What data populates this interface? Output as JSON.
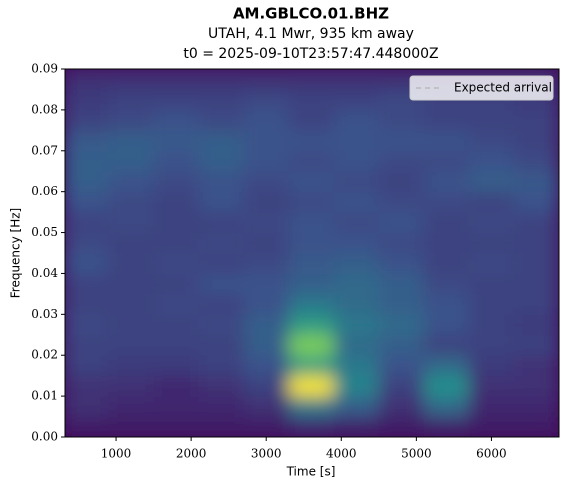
{
  "chart_data": {
    "type": "spectrogram",
    "title": "AM.GBLCO.01.BHZ",
    "subtitle": "UTAH, 4.1 Mwr, 935 km away",
    "subtitle2": "t0 = 2025-09-10T23:57:47.448000Z",
    "xlabel": "Time [s]",
    "ylabel": "Frequency [Hz]",
    "xlim": [
      320,
      6900
    ],
    "ylim": [
      0,
      0.09
    ],
    "xticks": [
      1000,
      2000,
      3000,
      4000,
      5000,
      6000
    ],
    "yticks": [
      {
        "value": 0,
        "label": "0.00"
      },
      {
        "value": 0.01,
        "label": "0.01"
      },
      {
        "value": 0.02,
        "label": "0.02"
      },
      {
        "value": 0.03,
        "label": "0.03"
      },
      {
        "value": 0.04,
        "label": "0.04"
      },
      {
        "value": 0.05,
        "label": "0.05"
      },
      {
        "value": 0.06,
        "label": "0.06"
      },
      {
        "value": 0.07,
        "label": "0.07"
      },
      {
        "value": 0.08,
        "label": "0.08"
      },
      {
        "value": 0.09,
        "label": "0.09"
      }
    ],
    "colormap": "viridis",
    "xbins": [
      300,
      900,
      1500,
      2100,
      2700,
      3300,
      3900,
      4500,
      5100,
      5700,
      6300,
      6900
    ],
    "ybins": [
      0,
      0.005,
      0.01,
      0.015,
      0.02,
      0.025,
      0.03,
      0.035,
      0.04,
      0.045,
      0.05,
      0.055,
      0.06,
      0.065,
      0.07,
      0.075,
      0.08,
      0.085,
      0.09
    ],
    "z": [
      [
        0.08,
        0.08,
        0.08,
        0.08,
        0.08,
        0.12,
        0.1,
        0.08,
        0.1,
        0.08,
        0.08
      ],
      [
        0.15,
        0.12,
        0.12,
        0.12,
        0.15,
        0.4,
        0.3,
        0.15,
        0.35,
        0.12,
        0.12
      ],
      [
        0.15,
        0.15,
        0.12,
        0.15,
        0.2,
        1.0,
        0.45,
        0.2,
        0.5,
        0.15,
        0.15
      ],
      [
        0.2,
        0.18,
        0.18,
        0.2,
        0.25,
        0.55,
        0.4,
        0.25,
        0.35,
        0.18,
        0.15
      ],
      [
        0.2,
        0.2,
        0.2,
        0.2,
        0.3,
        0.8,
        0.35,
        0.3,
        0.2,
        0.2,
        0.2
      ],
      [
        0.22,
        0.2,
        0.2,
        0.22,
        0.3,
        0.55,
        0.4,
        0.35,
        0.25,
        0.2,
        0.18
      ],
      [
        0.2,
        0.2,
        0.22,
        0.2,
        0.25,
        0.4,
        0.35,
        0.3,
        0.25,
        0.2,
        0.2
      ],
      [
        0.2,
        0.2,
        0.2,
        0.25,
        0.25,
        0.3,
        0.35,
        0.3,
        0.22,
        0.2,
        0.2
      ],
      [
        0.25,
        0.2,
        0.22,
        0.2,
        0.22,
        0.28,
        0.3,
        0.25,
        0.2,
        0.22,
        0.2
      ],
      [
        0.22,
        0.2,
        0.2,
        0.22,
        0.2,
        0.25,
        0.25,
        0.22,
        0.2,
        0.2,
        0.2
      ],
      [
        0.2,
        0.22,
        0.2,
        0.2,
        0.22,
        0.25,
        0.22,
        0.25,
        0.2,
        0.22,
        0.2
      ],
      [
        0.25,
        0.22,
        0.2,
        0.25,
        0.2,
        0.22,
        0.25,
        0.22,
        0.22,
        0.2,
        0.25
      ],
      [
        0.3,
        0.25,
        0.22,
        0.25,
        0.22,
        0.25,
        0.22,
        0.2,
        0.25,
        0.3,
        0.28
      ],
      [
        0.3,
        0.3,
        0.25,
        0.3,
        0.25,
        0.22,
        0.25,
        0.22,
        0.22,
        0.25,
        0.22
      ],
      [
        0.28,
        0.3,
        0.28,
        0.3,
        0.25,
        0.25,
        0.25,
        0.25,
        0.25,
        0.22,
        0.2
      ],
      [
        0.2,
        0.22,
        0.25,
        0.22,
        0.25,
        0.2,
        0.25,
        0.22,
        0.2,
        0.2,
        0.2
      ],
      [
        0.18,
        0.2,
        0.2,
        0.2,
        0.22,
        0.2,
        0.2,
        0.22,
        0.2,
        0.2,
        0.18
      ],
      [
        0.15,
        0.15,
        0.15,
        0.15,
        0.15,
        0.15,
        0.15,
        0.15,
        0.15,
        0.15,
        0.15
      ]
    ],
    "series": [
      {
        "name": "Expected arrival",
        "color": "#ffffff",
        "linestyle": "dashed"
      }
    ],
    "legend": "upper right"
  }
}
